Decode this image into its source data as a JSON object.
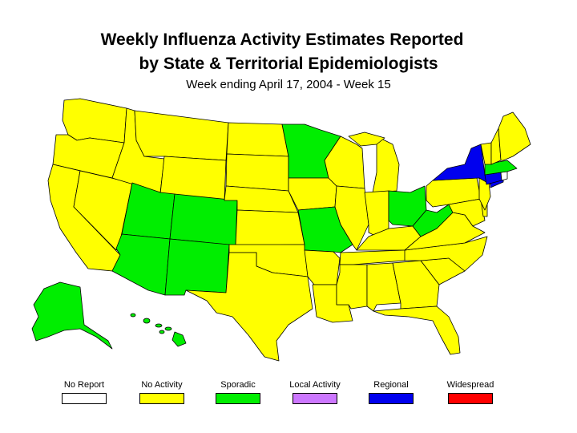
{
  "title_line1": "Weekly Influenza Activity Estimates Reported",
  "title_line2": "by State & Territorial Epidemiologists",
  "subtitle": "Week ending April 17, 2004 - Week 15",
  "colors": {
    "no_report": "#ffffff",
    "no_activity": "#ffff00",
    "sporadic": "#00ee00",
    "local_activity": "#cc77ff",
    "regional": "#0000ee",
    "widespread": "#ff0000",
    "border": "#000000"
  },
  "legend": [
    {
      "key": "no_report",
      "label": "No Report",
      "color": "#ffffff"
    },
    {
      "key": "no_activity",
      "label": "No Activity",
      "color": "#ffff00"
    },
    {
      "key": "sporadic",
      "label": "Sporadic",
      "color": "#00ee00"
    },
    {
      "key": "local_activity",
      "label": "Local Activity",
      "color": "#cc77ff"
    },
    {
      "key": "regional",
      "label": "Regional",
      "color": "#0000ee"
    },
    {
      "key": "widespread",
      "label": "Widespread",
      "color": "#ff0000"
    }
  ],
  "state_activity": {
    "WA": "no_activity",
    "OR": "no_activity",
    "CA": "no_activity",
    "NV": "no_activity",
    "ID": "no_activity",
    "MT": "no_activity",
    "WY": "no_activity",
    "UT": "sporadic",
    "CO": "sporadic",
    "AZ": "sporadic",
    "NM": "sporadic",
    "ND": "no_activity",
    "SD": "no_activity",
    "NE": "no_activity",
    "KS": "no_activity",
    "OK": "no_activity",
    "TX": "no_activity",
    "MN": "sporadic",
    "IA": "no_activity",
    "MO": "sporadic",
    "AR": "no_activity",
    "LA": "no_activity",
    "WI": "no_activity",
    "IL": "no_activity",
    "MI": "no_activity",
    "IN": "no_activity",
    "OH": "sporadic",
    "KY": "no_activity",
    "TN": "no_activity",
    "MS": "no_activity",
    "AL": "no_activity",
    "GA": "no_activity",
    "FL": "no_activity",
    "SC": "no_activity",
    "NC": "no_activity",
    "VA": "no_activity",
    "WV": "sporadic",
    "MD": "no_activity",
    "DE": "no_activity",
    "PA": "no_activity",
    "NJ": "no_activity",
    "NY": "regional",
    "CT": "regional",
    "RI": "no_report",
    "MA": "sporadic",
    "VT": "no_activity",
    "NH": "no_activity",
    "ME": "no_activity",
    "AK": "sporadic",
    "HI": "sporadic"
  }
}
